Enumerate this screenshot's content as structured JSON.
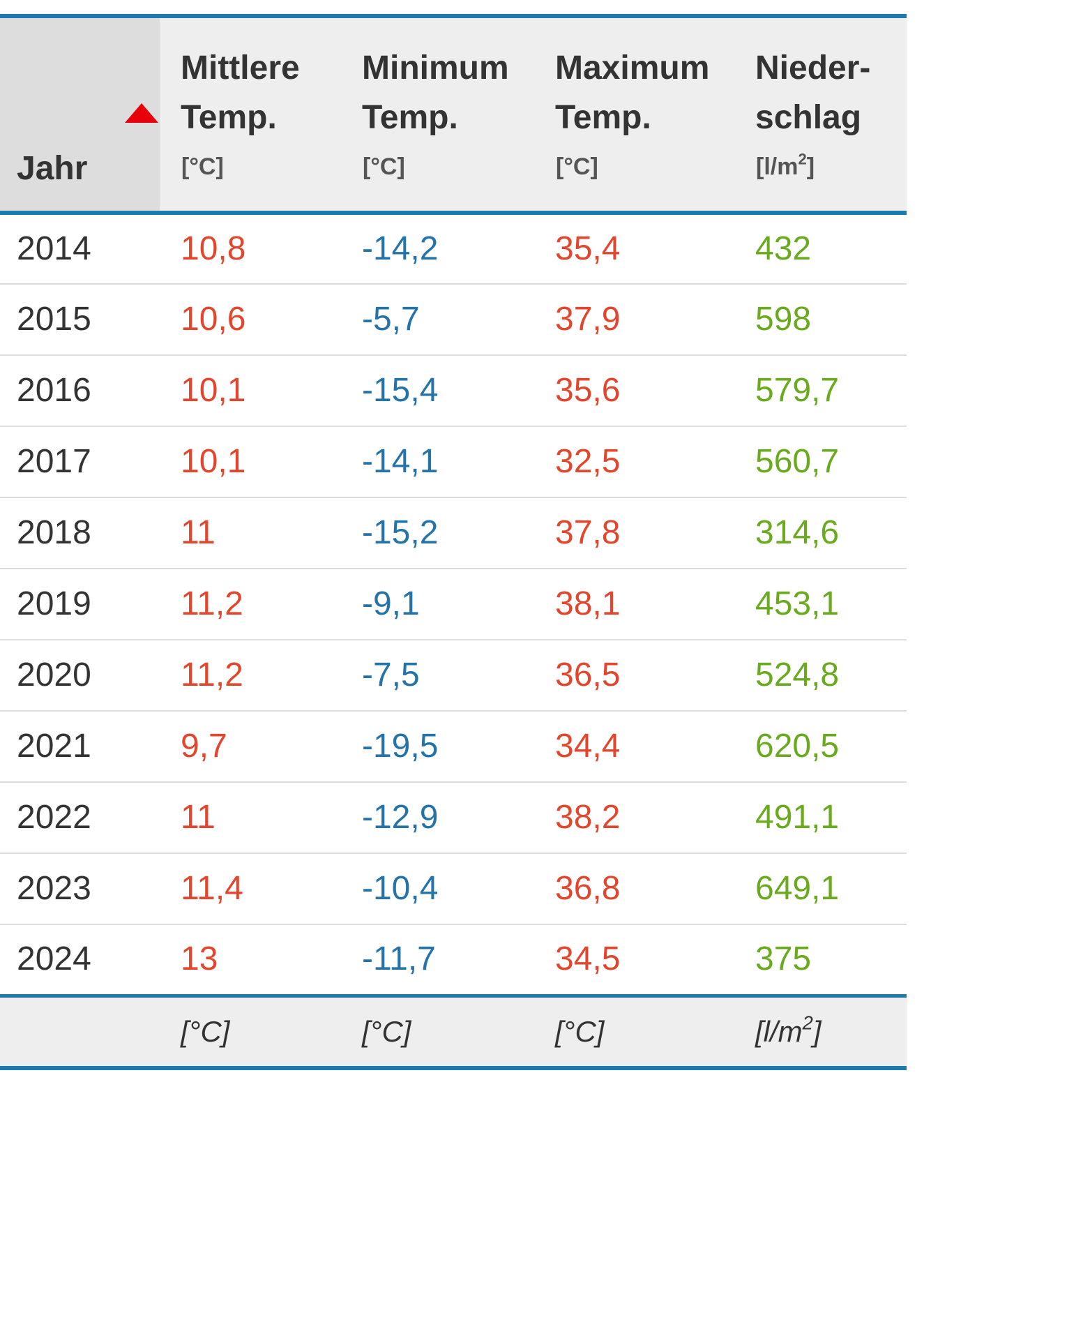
{
  "header": {
    "year": "Jahr",
    "mean_title": [
      "Mittlere",
      "Temp."
    ],
    "min_title": [
      "Minimum",
      "Temp."
    ],
    "max_title": [
      "Maximum",
      "Temp."
    ],
    "prec_title": [
      "Nieder-",
      "schlag"
    ],
    "temp_unit": "[°C]",
    "prec_unit_prefix": "[l/m",
    "prec_unit_sup": "2",
    "prec_unit_suffix": "]",
    "sort_icon": "sort-ascending-triangle-icon"
  },
  "rows": [
    {
      "year": "2014",
      "mean": "10,8",
      "min": "-14,2",
      "max": "35,4",
      "prec": "432"
    },
    {
      "year": "2015",
      "mean": "10,6",
      "min": "-5,7",
      "max": "37,9",
      "prec": "598"
    },
    {
      "year": "2016",
      "mean": "10,1",
      "min": "-15,4",
      "max": "35,6",
      "prec": "579,7"
    },
    {
      "year": "2017",
      "mean": "10,1",
      "min": "-14,1",
      "max": "32,5",
      "prec": "560,7"
    },
    {
      "year": "2018",
      "mean": "11",
      "min": "-15,2",
      "max": "37,8",
      "prec": "314,6"
    },
    {
      "year": "2019",
      "mean": "11,2",
      "min": "-9,1",
      "max": "38,1",
      "prec": "453,1"
    },
    {
      "year": "2020",
      "mean": "11,2",
      "min": "-7,5",
      "max": "36,5",
      "prec": "524,8"
    },
    {
      "year": "2021",
      "mean": "9,7",
      "min": "-19,5",
      "max": "34,4",
      "prec": "620,5"
    },
    {
      "year": "2022",
      "mean": "11",
      "min": "-12,9",
      "max": "38,2",
      "prec": "491,1"
    },
    {
      "year": "2023",
      "mean": "11,4",
      "min": "-10,4",
      "max": "36,8",
      "prec": "649,1"
    },
    {
      "year": "2024",
      "mean": "13",
      "min": "-11,7",
      "max": "34,5",
      "prec": "375"
    }
  ],
  "footer": {
    "temp_unit": "[°C]",
    "prec_unit_prefix": "[l/m",
    "prec_unit_sup": "2",
    "prec_unit_suffix": "]"
  },
  "colors": {
    "accent_border": "#1e7bb0",
    "warm_values": "#e2472d",
    "cold_values": "#2574a9",
    "precipitation_values": "#6aaa1e",
    "sort_arrow": "#e8000b"
  }
}
